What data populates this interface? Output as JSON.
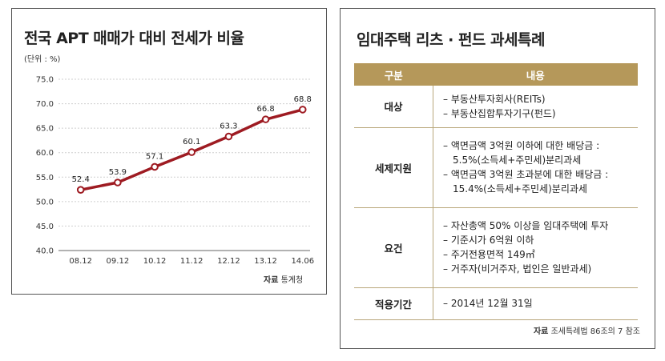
{
  "left": {
    "title": "전국 APT 매매가 대비 전세가 비율",
    "unit": "(단위 : %)",
    "source_label": "자료",
    "source_text": "통계청"
  },
  "chart_data": {
    "type": "line",
    "categories": [
      "08.12",
      "09.12",
      "10.12",
      "11.12",
      "12.12",
      "13.12",
      "14.06"
    ],
    "series": [
      {
        "values": [
          52.4,
          53.9,
          57.1,
          60.1,
          63.3,
          66.8,
          68.8
        ]
      }
    ],
    "ylim": [
      40.0,
      75.0
    ],
    "yticks": [
      "75.0",
      "70.0",
      "65.0",
      "60.0",
      "55.0",
      "50.0",
      "45.0",
      "40.0"
    ],
    "data_labels": [
      "52.4",
      "53.9",
      "57.1",
      "60.1",
      "63.3",
      "66.8",
      "68.8"
    ],
    "grid": true,
    "colors": {
      "line": "#9e1b22",
      "marker_fill": "#ffffff",
      "grid": "#cfcfcf"
    }
  },
  "right": {
    "title": "임대주택 리츠 · 펀드 과세특례",
    "header_category": "구분",
    "header_content": "내용",
    "rows": [
      {
        "category": "대상",
        "lines": [
          "– 부동산투자회사(REITs)",
          "– 부동산집합투자기구(펀드)"
        ]
      },
      {
        "category": "세제지원",
        "lines": [
          "– 액면금액 3억원 이하에 대한 배당금 :",
          "5.5%(소득세+주민세)분리과세",
          "– 액면금액 3억원 초과분에 대한 배당금 :",
          "15.4%(소득세+주민세)분리과세"
        ]
      },
      {
        "category": "요건",
        "lines": [
          "– 자산총액 50% 이상을 임대주택에 투자",
          "– 기준시가 6억원 이하",
          "– 주거전용면적 149㎡",
          "– 거주자(비거주자, 법인은 일반과세)"
        ]
      },
      {
        "category": "적용기간",
        "lines": [
          "– 2014년 12월 31일"
        ]
      }
    ],
    "source_label": "자료",
    "source_text": "조세특례법 86조의 7 참조",
    "colors": {
      "header_bg": "#b5985a",
      "rule": "#b9a77b"
    }
  }
}
